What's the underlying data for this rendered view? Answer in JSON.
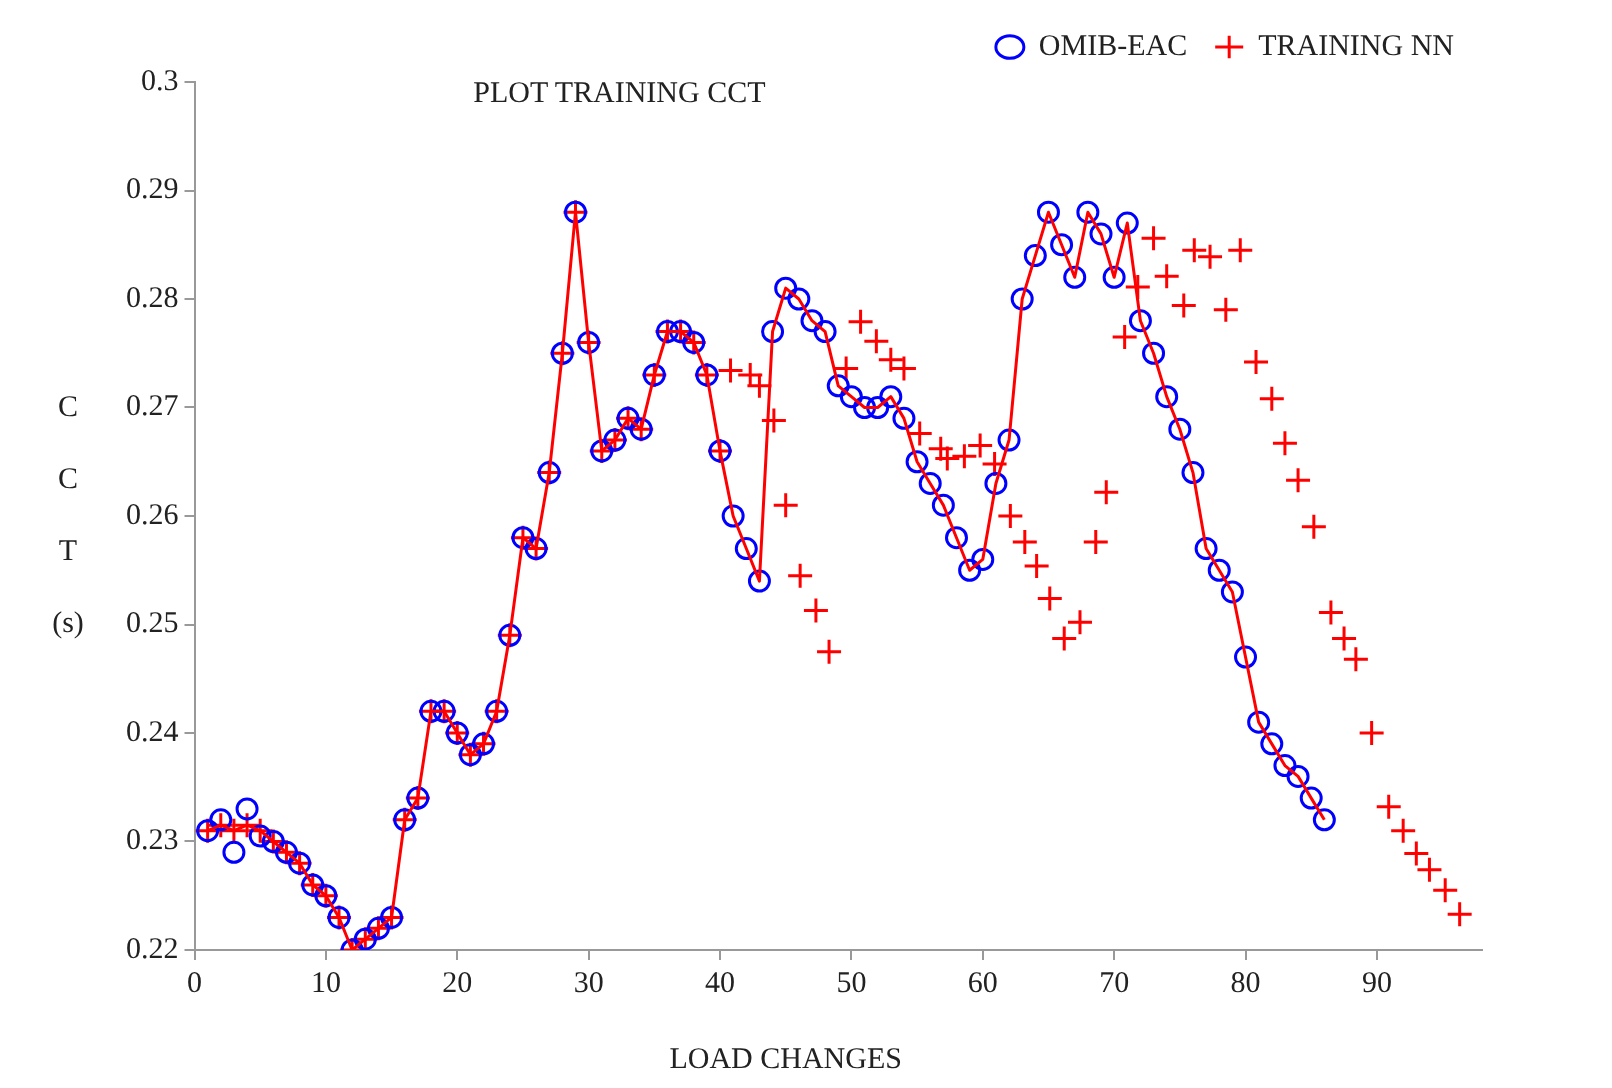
{
  "chart_data": {
    "type": "scatter",
    "title": "PLOT TRAINING CCT",
    "xlabel": "LOAD CHANGES",
    "ylabel": "C C T (s)",
    "xlim": [
      0,
      98
    ],
    "xticks": [
      0,
      10,
      20,
      30,
      40,
      50,
      60,
      70,
      80,
      90
    ],
    "ylim": [
      0.22,
      0.3
    ],
    "yticks": [
      0.22,
      0.23,
      0.24,
      0.25,
      0.26,
      0.27,
      0.28,
      0.29,
      0.3
    ],
    "grid": false,
    "legend": "top right",
    "series": [
      {
        "name": "OMIB-EAC",
        "type": "scatter",
        "marker": "circle",
        "color": "#0000ff",
        "x": [
          1,
          2,
          3,
          4,
          5,
          6,
          7,
          8,
          9,
          10,
          11,
          12,
          13,
          14,
          15,
          16,
          17,
          18,
          19,
          20,
          21,
          22,
          23,
          24,
          25,
          26,
          27,
          28,
          29,
          30,
          31,
          32,
          33,
          34,
          35,
          36,
          37,
          38,
          39,
          40,
          41,
          42,
          43,
          44,
          45,
          46,
          47,
          48,
          49,
          50,
          51,
          52,
          53,
          54,
          55,
          56,
          57,
          58,
          59,
          60,
          61,
          62,
          63,
          64,
          65,
          66,
          67,
          68,
          69,
          70,
          71,
          72,
          73,
          74,
          75,
          76,
          77,
          78,
          79,
          80,
          81,
          82,
          83,
          84,
          85,
          86
        ],
        "values": [
          0.231,
          0.232,
          0.229,
          0.233,
          0.2305,
          0.23,
          0.229,
          0.228,
          0.226,
          0.225,
          0.223,
          0.22,
          0.221,
          0.222,
          0.223,
          0.232,
          0.234,
          0.242,
          0.242,
          0.24,
          0.238,
          0.239,
          0.242,
          0.249,
          0.258,
          0.257,
          0.264,
          0.275,
          0.288,
          0.276,
          0.266,
          0.267,
          0.269,
          0.268,
          0.273,
          0.277,
          0.277,
          0.276,
          0.273,
          0.266,
          0.26,
          0.257,
          0.254,
          0.277,
          0.281,
          0.28,
          0.278,
          0.277,
          0.272,
          0.271,
          0.27,
          0.27,
          0.271,
          0.269,
          0.265,
          0.263,
          0.261,
          0.258,
          0.255,
          0.256,
          0.263,
          0.267,
          0.28,
          0.284,
          0.288,
          0.285,
          0.282,
          0.288,
          0.286,
          0.282,
          0.287,
          0.278,
          0.275,
          0.271,
          0.268,
          0.264,
          0.257,
          0.255,
          0.253,
          0.247,
          0.241,
          0.239,
          0.237,
          0.236,
          0.234,
          0.232
        ]
      },
      {
        "name": "TRAINING NN",
        "type": "scatter",
        "marker": "cross",
        "color": "#ff0000",
        "x": [
          1,
          2,
          3,
          4,
          5,
          6,
          7,
          8,
          9,
          10,
          11,
          12,
          13,
          14,
          15,
          16,
          17,
          18,
          19,
          20,
          21,
          22,
          23,
          24,
          25,
          26,
          27,
          28,
          29,
          30,
          31,
          32,
          33,
          34,
          35,
          36,
          37,
          38,
          39,
          40,
          40.8,
          42.3,
          43,
          44.1,
          45,
          46.1,
          47.3,
          48.3,
          49.6,
          50.7,
          51.9,
          53,
          54,
          55.2,
          56.8,
          57.3,
          58.6,
          59.8,
          60.9,
          62.1,
          63.2,
          64.1,
          65.1,
          66.2,
          67.4,
          68.6,
          69.4,
          70.8,
          71.8,
          73,
          74,
          75.3,
          76.1,
          77.3,
          78.5,
          79.6,
          80.8,
          82,
          83,
          84,
          85.2,
          86.5,
          87.5,
          88.4,
          89.6,
          90.9,
          92,
          93,
          94,
          95.2,
          96.3
        ],
        "values": [
          0.231,
          0.2315,
          0.231,
          0.2315,
          0.231,
          0.23,
          0.229,
          0.228,
          0.226,
          0.225,
          0.223,
          0.22,
          0.221,
          0.222,
          0.223,
          0.232,
          0.234,
          0.242,
          0.242,
          0.24,
          0.238,
          0.239,
          0.242,
          0.249,
          0.258,
          0.257,
          0.264,
          0.275,
          0.288,
          0.276,
          0.266,
          0.267,
          0.269,
          0.268,
          0.273,
          0.277,
          0.277,
          0.276,
          0.273,
          0.266,
          0.2734,
          0.273,
          0.272,
          0.2688,
          0.261,
          0.2545,
          0.2513,
          0.2475,
          0.2736,
          0.2779,
          0.2761,
          0.2744,
          0.2736,
          0.2676,
          0.2662,
          0.2653,
          0.2655,
          0.2665,
          0.2648,
          0.26,
          0.2576,
          0.2554,
          0.2524,
          0.2487,
          0.2502,
          0.2576,
          0.2622,
          0.2765,
          0.2811,
          0.2856,
          0.2821,
          0.2794,
          0.2845,
          0.2839,
          0.279,
          0.2845,
          0.2742,
          0.2708,
          0.2667,
          0.2633,
          0.259,
          0.2511,
          0.2487,
          0.2468,
          0.24,
          0.2332,
          0.231,
          0.2289,
          0.2274,
          0.2255,
          0.2233
        ]
      },
      {
        "type": "line",
        "marker": "none",
        "line_style": "solid",
        "color": "#ff0000",
        "x": [
          1,
          2,
          3,
          4,
          5,
          6,
          7,
          8,
          9,
          10,
          11,
          12,
          13,
          14,
          15,
          16,
          17,
          18,
          19,
          20,
          21,
          22,
          23,
          24,
          25,
          26,
          27,
          28,
          29,
          30,
          31,
          32,
          33,
          34,
          35,
          36,
          37,
          38,
          39,
          40,
          41,
          42,
          43,
          44,
          45,
          46,
          47,
          48,
          49,
          50,
          51,
          52,
          53,
          54,
          55,
          56,
          57,
          58,
          59,
          60,
          61,
          62,
          63,
          64,
          65,
          66,
          67,
          68,
          69,
          70,
          71,
          72,
          73,
          74,
          75,
          76,
          77,
          78,
          79,
          80,
          81,
          82,
          83,
          84,
          85,
          86
        ],
        "values": [
          0.231,
          0.2315,
          0.231,
          0.2315,
          0.231,
          0.23,
          0.229,
          0.228,
          0.226,
          0.225,
          0.223,
          0.22,
          0.221,
          0.222,
          0.223,
          0.232,
          0.234,
          0.242,
          0.242,
          0.24,
          0.238,
          0.239,
          0.242,
          0.249,
          0.258,
          0.257,
          0.264,
          0.275,
          0.288,
          0.276,
          0.266,
          0.267,
          0.269,
          0.268,
          0.273,
          0.277,
          0.277,
          0.276,
          0.273,
          0.266,
          0.26,
          0.257,
          0.254,
          0.277,
          0.281,
          0.28,
          0.278,
          0.277,
          0.272,
          0.271,
          0.27,
          0.27,
          0.271,
          0.269,
          0.265,
          0.263,
          0.261,
          0.258,
          0.255,
          0.256,
          0.263,
          0.267,
          0.28,
          0.284,
          0.288,
          0.285,
          0.282,
          0.288,
          0.286,
          0.282,
          0.287,
          0.278,
          0.275,
          0.271,
          0.268,
          0.264,
          0.257,
          0.255,
          0.253,
          0.247,
          0.241,
          0.239,
          0.237,
          0.236,
          0.234,
          0.232
        ]
      }
    ]
  }
}
